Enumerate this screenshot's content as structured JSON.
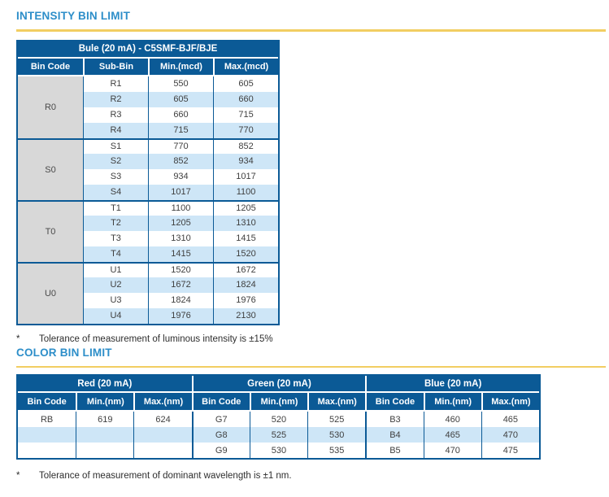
{
  "colors": {
    "header_blue": "#0B5A96",
    "row_light_blue": "#CEE6F7",
    "bin_code_gray": "#D8D8D8",
    "section_title_blue": "#2D8EC9",
    "divider_gold": "#F2CE62",
    "body_text": "#404040"
  },
  "intensity": {
    "section_title": "INTENSITY BIN LIMIT",
    "table_title": "Bule (20 mA) - C5SMF-BJF/BJE",
    "columns": [
      "Bin Code",
      "Sub-Bin",
      "Min.(mcd)",
      "Max.(mcd)"
    ],
    "groups": [
      {
        "bin_code": "R0",
        "rows": [
          [
            "R1",
            "550",
            "605"
          ],
          [
            "R2",
            "605",
            "660"
          ],
          [
            "R3",
            "660",
            "715"
          ],
          [
            "R4",
            "715",
            "770"
          ]
        ]
      },
      {
        "bin_code": "S0",
        "rows": [
          [
            "S1",
            "770",
            "852"
          ],
          [
            "S2",
            "852",
            "934"
          ],
          [
            "S3",
            "934",
            "1017"
          ],
          [
            "S4",
            "1017",
            "1100"
          ]
        ]
      },
      {
        "bin_code": "T0",
        "rows": [
          [
            "T1",
            "1100",
            "1205"
          ],
          [
            "T2",
            "1205",
            "1310"
          ],
          [
            "T3",
            "1310",
            "1415"
          ],
          [
            "T4",
            "1415",
            "1520"
          ]
        ]
      },
      {
        "bin_code": "U0",
        "rows": [
          [
            "U1",
            "1520",
            "1672"
          ],
          [
            "U2",
            "1672",
            "1824"
          ],
          [
            "U3",
            "1824",
            "1976"
          ],
          [
            "U4",
            "1976",
            "2130"
          ]
        ]
      }
    ],
    "footnote_marker": "*",
    "footnote": "Tolerance of measurement of luminous intensity is ±15%"
  },
  "color": {
    "section_title": "COLOR BIN LIMIT",
    "groups": [
      {
        "title": "Red (20 mA)",
        "columns": [
          "Bin Code",
          "Min.(nm)",
          "Max.(nm)"
        ],
        "rows": [
          [
            "RB",
            "619",
            "624"
          ],
          [
            "",
            "",
            ""
          ],
          [
            "",
            "",
            ""
          ]
        ]
      },
      {
        "title": "Green (20 mA)",
        "columns": [
          "Bin Code",
          "Min.(nm)",
          "Max.(nm)"
        ],
        "rows": [
          [
            "G7",
            "520",
            "525"
          ],
          [
            "G8",
            "525",
            "530"
          ],
          [
            "G9",
            "530",
            "535"
          ]
        ]
      },
      {
        "title": "Blue (20 mA)",
        "columns": [
          "Bin Code",
          "Min.(nm)",
          "Max.(nm)"
        ],
        "rows": [
          [
            "B3",
            "460",
            "465"
          ],
          [
            "B4",
            "465",
            "470"
          ],
          [
            "B5",
            "470",
            "475"
          ]
        ]
      }
    ],
    "footnote_marker": "*",
    "footnote": "Tolerance of measurement of dominant wavelength is ±1 nm."
  }
}
